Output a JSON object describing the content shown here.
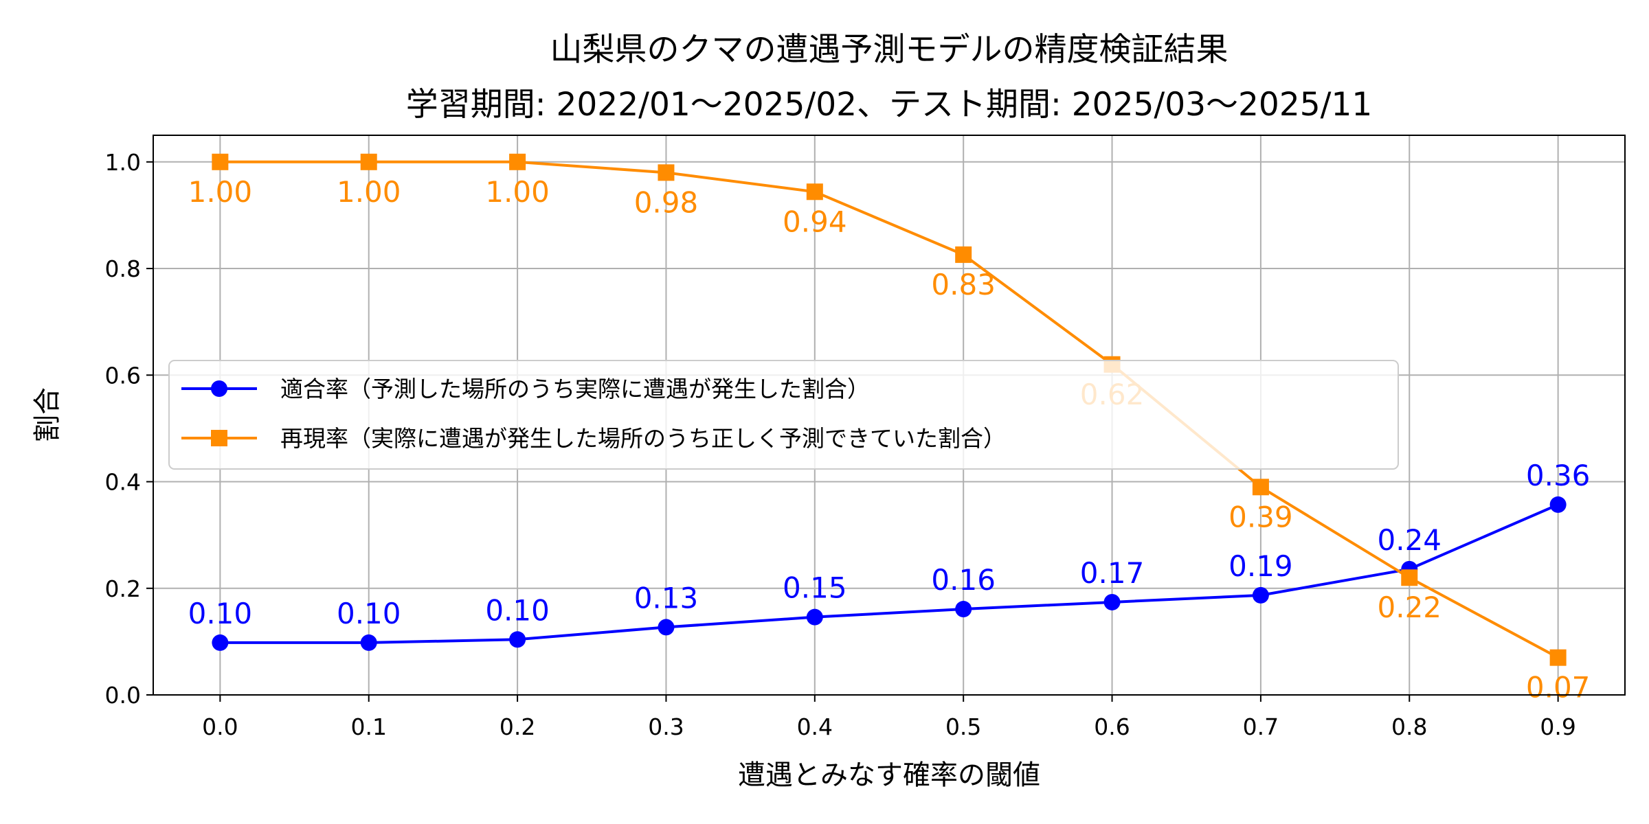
{
  "chart_data": {
    "type": "line",
    "title": "山梨県のクマの遭遇予測モデルの精度検証結果",
    "subtitle": "学習期間: 2022/01〜2025/02、テスト期間: 2025/03〜2025/11",
    "xlabel": "遭遇とみなす確率の閾値",
    "ylabel": "割合",
    "x": [
      0.0,
      0.1,
      0.2,
      0.3,
      0.4,
      0.5,
      0.6,
      0.7,
      0.8,
      0.9
    ],
    "xticks": [
      "0.0",
      "0.1",
      "0.2",
      "0.3",
      "0.4",
      "0.5",
      "0.6",
      "0.7",
      "0.8",
      "0.9"
    ],
    "yticks": [
      "0.0",
      "0.2",
      "0.4",
      "0.6",
      "0.8",
      "1.0"
    ],
    "xlim": [
      -0.045,
      0.945
    ],
    "ylim": [
      0,
      1.05
    ],
    "grid": true,
    "legend_placement": "center-left",
    "series": [
      {
        "name": "適合率（予測した場所のうち実際に遭遇が発生した割合）",
        "color": "#0000ff",
        "marker": "circle",
        "values": [
          0.098,
          0.098,
          0.104,
          0.127,
          0.146,
          0.161,
          0.174,
          0.187,
          0.236,
          0.357
        ],
        "labels": [
          "0.10",
          "0.10",
          "0.10",
          "0.13",
          "0.15",
          "0.16",
          "0.17",
          "0.19",
          "0.24",
          "0.36"
        ]
      },
      {
        "name": "再現率（実際に遭遇が発生した場所のうち正しく予測できていた割合）",
        "color": "#ff8c00",
        "marker": "square",
        "values": [
          1.0,
          1.0,
          1.0,
          0.98,
          0.944,
          0.826,
          0.62,
          0.39,
          0.22,
          0.07
        ],
        "labels": [
          "1.00",
          "1.00",
          "1.00",
          "0.98",
          "0.94",
          "0.83",
          "0.62",
          "0.39",
          "0.22",
          "0.07"
        ]
      }
    ]
  }
}
